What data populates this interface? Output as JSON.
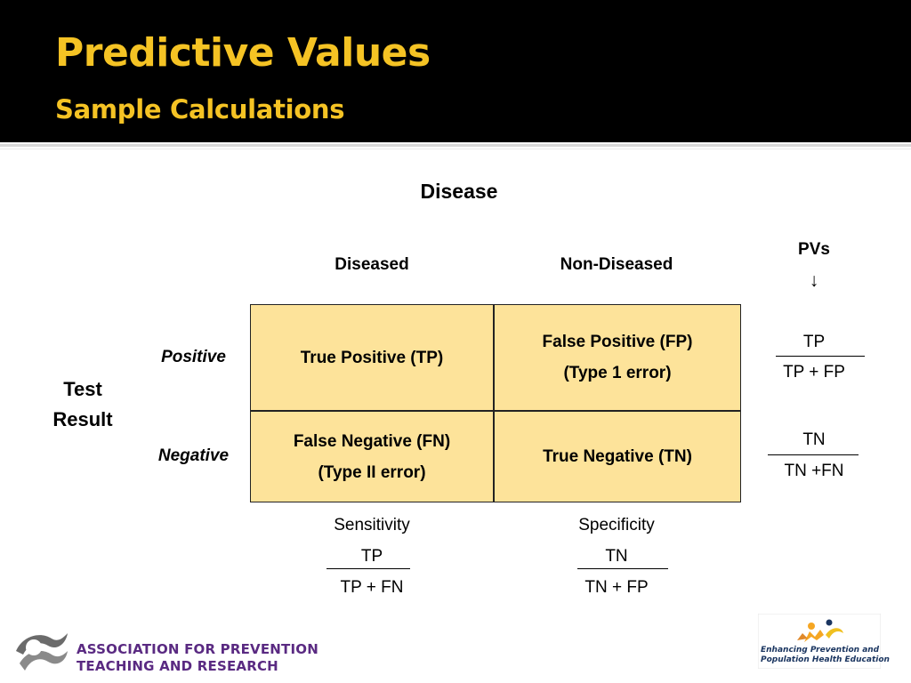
{
  "slide": {
    "title": "Predictive Values",
    "subtitle": "Sample Calculations"
  },
  "table": {
    "disease_header": "Disease",
    "col_diseased": "Diseased",
    "col_non_diseased": "Non-Diseased",
    "pvs_label": "PVs",
    "pvs_arrow": "↓",
    "row_group_line1": "Test",
    "row_group_line2": "Result",
    "row_positive": "Positive",
    "row_negative": "Negative",
    "tp": "True Positive (TP)",
    "fp_line1": "False Positive (FP)",
    "fp_line2": "(Type 1 error)",
    "fn_line1": "False Negative (FN)",
    "fn_line2": "(Type II error)",
    "tn": "True Negative (TN)",
    "fill_color": "#fde39a"
  },
  "formulas": {
    "ppv_num": "TP",
    "ppv_den": "TP + FP",
    "npv_num": "TN",
    "npv_den": "TN +FN",
    "sensitivity_label": "Sensitivity",
    "sensitivity_num": "TP",
    "sensitivity_den": "TP + FN",
    "specificity_label": "Specificity",
    "specificity_num": "TN",
    "specificity_den": "TN + FP"
  },
  "footer": {
    "left_logo_line1": "ASSOCIATION FOR PREVENTION",
    "left_logo_line2": "TEACHING AND RESEARCH",
    "right_logo_line1": "Enhancing Prevention and",
    "right_logo_line2": "Population Health Education"
  },
  "colors": {
    "title": "#f5c324",
    "header_bg": "#000000",
    "footer_text": "#5a2a82"
  }
}
